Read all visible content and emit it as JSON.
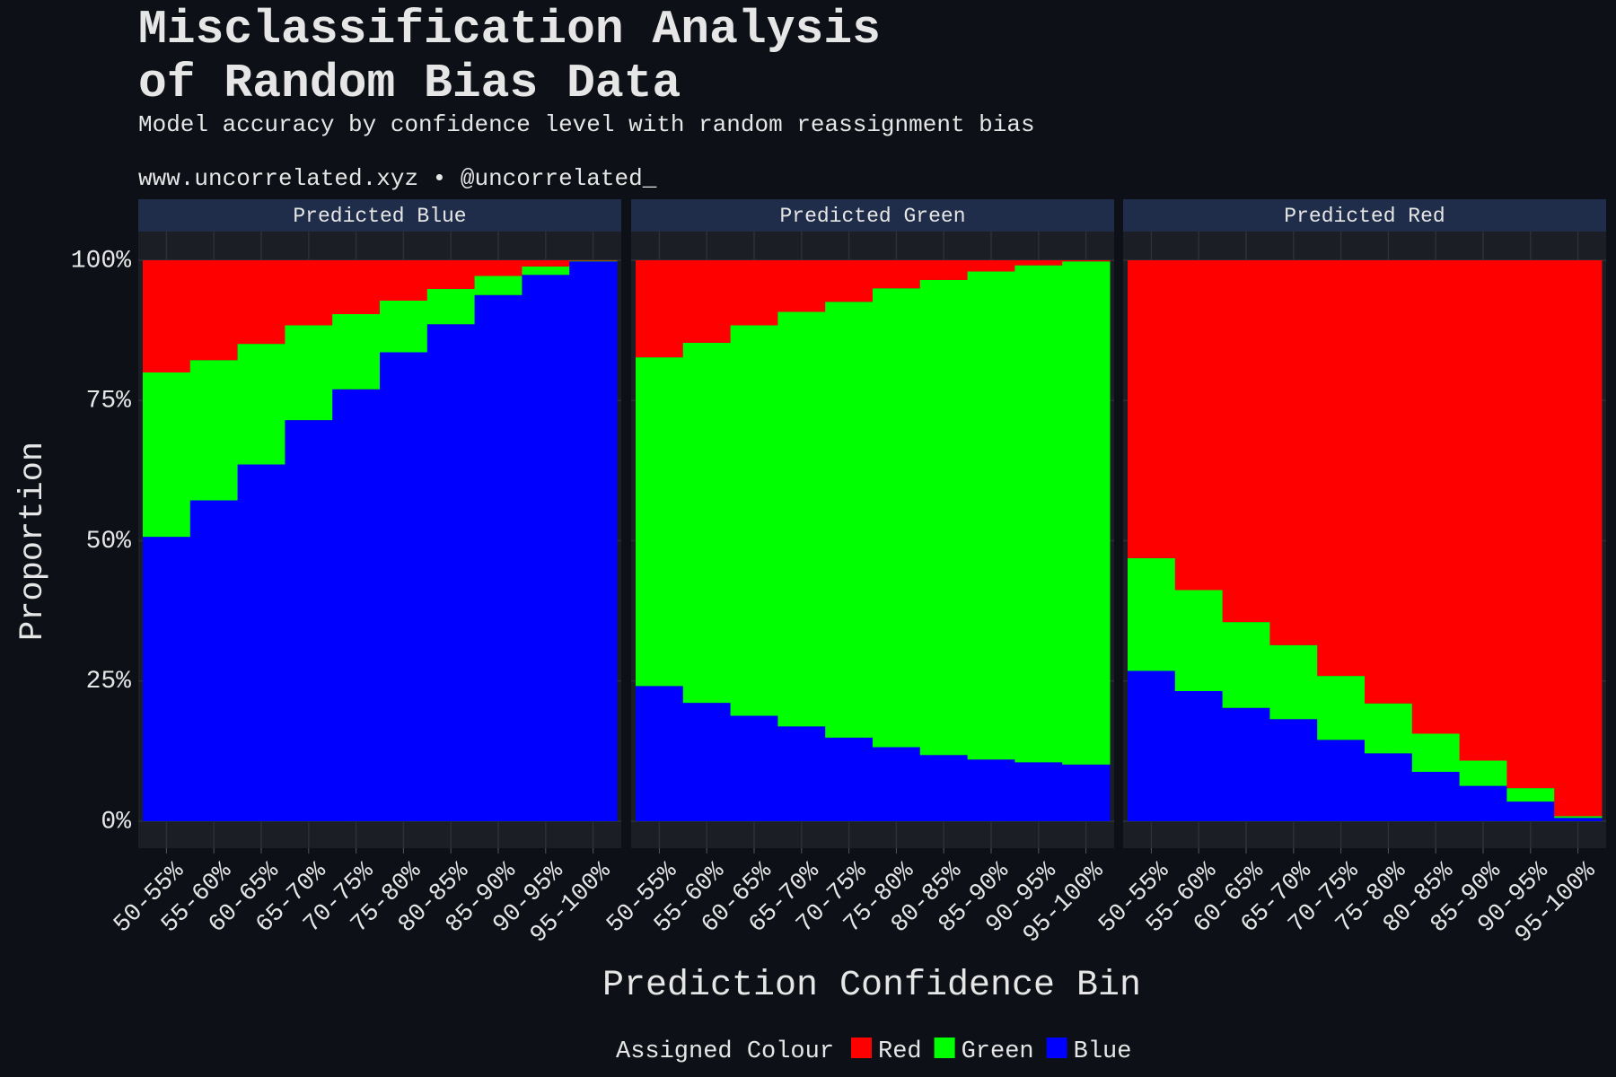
{
  "title": [
    "Misclassification Analysis",
    "of Random Bias Data"
  ],
  "subtitle": "Model accuracy by confidence level with random reassignment bias",
  "caption": "www.uncorrelated.xyz • @uncorrelated_",
  "x_label": "Prediction Confidence Bin",
  "y_label": "Proportion",
  "legend_title": "Assigned Colour",
  "chart_data": [
    {
      "type": "bar",
      "stacked": true,
      "title": "Predicted Blue",
      "categories": [
        "50-55%",
        "55-60%",
        "60-65%",
        "65-70%",
        "70-75%",
        "75-80%",
        "80-85%",
        "85-90%",
        "90-95%",
        "95-100%"
      ],
      "series": [
        {
          "name": "Red",
          "color": "#ff0000",
          "values": [
            20.0,
            17.8,
            14.9,
            11.6,
            9.6,
            7.2,
            5.1,
            2.8,
            1.1,
            0.1
          ]
        },
        {
          "name": "Green",
          "color": "#00ff00",
          "values": [
            29.3,
            25.0,
            21.5,
            16.9,
            13.4,
            9.2,
            6.3,
            3.4,
            1.5,
            0.1
          ]
        },
        {
          "name": "Blue",
          "color": "#0000ff",
          "values": [
            50.7,
            57.2,
            63.6,
            71.5,
            77.0,
            83.6,
            88.6,
            93.8,
            97.4,
            99.8
          ]
        }
      ],
      "ylim": [
        0,
        100
      ],
      "yticks": [
        {
          "value": 0,
          "label": "0%"
        },
        {
          "value": 25,
          "label": "25%"
        },
        {
          "value": 50,
          "label": "50%"
        },
        {
          "value": 75,
          "label": "75%"
        },
        {
          "value": 100,
          "label": "100%"
        }
      ],
      "grid": true
    },
    {
      "type": "bar",
      "stacked": true,
      "title": "Predicted Green",
      "categories": [
        "50-55%",
        "55-60%",
        "60-65%",
        "65-70%",
        "70-75%",
        "75-80%",
        "80-85%",
        "85-90%",
        "90-95%",
        "95-100%"
      ],
      "series": [
        {
          "name": "Red",
          "color": "#ff0000",
          "values": [
            17.3,
            14.7,
            11.6,
            9.2,
            7.4,
            5.0,
            3.5,
            2.0,
            0.9,
            0.2
          ]
        },
        {
          "name": "Green",
          "color": "#00ff00",
          "values": [
            58.6,
            64.2,
            69.6,
            73.9,
            77.7,
            81.8,
            84.7,
            87.0,
            88.6,
            89.7
          ]
        },
        {
          "name": "Blue",
          "color": "#0000ff",
          "values": [
            24.1,
            21.1,
            18.8,
            16.9,
            14.9,
            13.2,
            11.8,
            11.0,
            10.5,
            10.1
          ]
        }
      ],
      "ylim": [
        0,
        100
      ],
      "yticks": [
        {
          "value": 0,
          "label": "0%"
        },
        {
          "value": 25,
          "label": "25%"
        },
        {
          "value": 50,
          "label": "50%"
        },
        {
          "value": 75,
          "label": "75%"
        },
        {
          "value": 100,
          "label": "100%"
        }
      ],
      "grid": true
    },
    {
      "type": "bar",
      "stacked": true,
      "title": "Predicted Red",
      "categories": [
        "50-55%",
        "55-60%",
        "60-65%",
        "65-70%",
        "70-75%",
        "75-80%",
        "80-85%",
        "85-90%",
        "90-95%",
        "95-100%"
      ],
      "series": [
        {
          "name": "Red",
          "color": "#ff0000",
          "values": [
            53.1,
            58.8,
            64.5,
            68.6,
            74.1,
            79.0,
            84.4,
            89.2,
            94.1,
            99.1
          ]
        },
        {
          "name": "Green",
          "color": "#00ff00",
          "values": [
            20.1,
            18.0,
            15.3,
            13.2,
            11.4,
            8.9,
            6.8,
            4.5,
            2.4,
            0.3
          ]
        },
        {
          "name": "Blue",
          "color": "#0000ff",
          "values": [
            26.8,
            23.2,
            20.2,
            18.2,
            14.5,
            12.1,
            8.8,
            6.3,
            3.5,
            0.6
          ]
        }
      ],
      "ylim": [
        0,
        100
      ],
      "yticks": [
        {
          "value": 0,
          "label": "0%"
        },
        {
          "value": 25,
          "label": "25%"
        },
        {
          "value": 50,
          "label": "50%"
        },
        {
          "value": 75,
          "label": "75%"
        },
        {
          "value": 100,
          "label": "100%"
        }
      ],
      "grid": true
    }
  ]
}
